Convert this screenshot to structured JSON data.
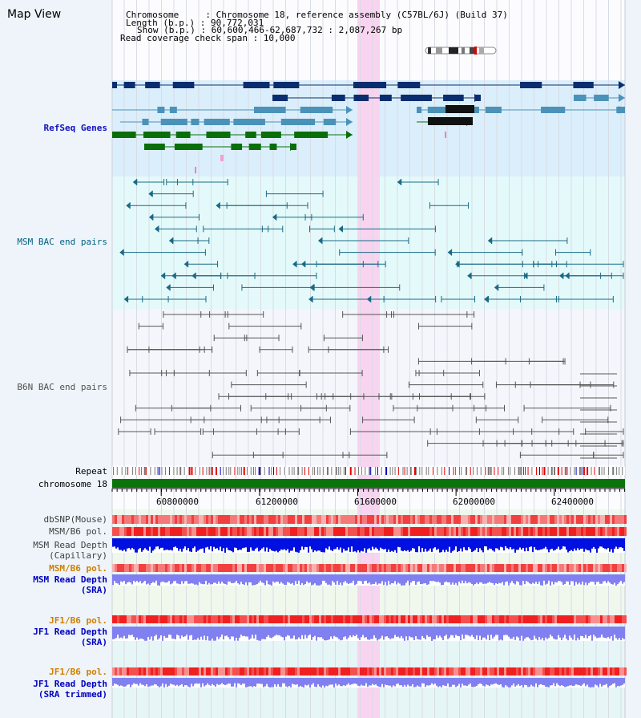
{
  "header": {
    "title": "Map View",
    "lines": [
      "Chromosome     : Chromosome 18, reference assembly (C57BL/6J) (Build 37)",
      "Length (b.p.) : 90,772,031",
      "Show (b.p.) : 60,600,466-62,687,732 : 2,087,267 bp",
      "Read coverage check span : 10,000"
    ]
  },
  "ruler": {
    "ticks": [
      "60800000",
      "61200000",
      "61600000",
      "62000000",
      "62400000"
    ],
    "tick_values": [
      60800000,
      61200000,
      61600000,
      62000000,
      62400000
    ],
    "range": [
      60600466,
      62687732
    ]
  },
  "highlight_range": [
    61600000,
    61690000
  ],
  "tracks": [
    {
      "id": "refseq",
      "label": "RefSeq Genes",
      "color": "#0000a0"
    },
    {
      "id": "msm-bac",
      "label": "MSM BAC end pairs",
      "color": "#006080"
    },
    {
      "id": "b6n-bac",
      "label": "B6N BAC end pairs",
      "color": "#505050"
    },
    {
      "id": "repeat",
      "label": "Repeat",
      "color": "#000000"
    },
    {
      "id": "chromosome",
      "label": "chromosome 18",
      "color": "#000000"
    },
    {
      "id": "dbsnp",
      "label": "dbSNP(Mouse)",
      "color": "#404040"
    },
    {
      "id": "msm-b6-pol",
      "label": "MSM/B6 pol.",
      "color": "#404040"
    },
    {
      "id": "msm-depth-cap",
      "label": "MSM Read Depth\n(Capillary)",
      "color": "#404040"
    },
    {
      "id": "msm-b6-pol-2",
      "label": "MSM/B6 pol.",
      "color": "#d08000"
    },
    {
      "id": "msm-depth-sra",
      "label": "MSM Read Depth\n(SRA)",
      "color": "#0000c0"
    },
    {
      "id": "jf1-b6-pol",
      "label": "JF1/B6 pol.",
      "color": "#d08000"
    },
    {
      "id": "jf1-depth-sra",
      "label": "JF1 Read Depth\n(SRA)",
      "color": "#0000c0"
    },
    {
      "id": "jf1-b6-pol-2",
      "label": "JF1/B6 pol.",
      "color": "#d08000"
    },
    {
      "id": "jf1-depth-trim",
      "label": "JF1 Read Depth\n(SRA trimmed)",
      "color": "#0000c0"
    }
  ],
  "colors": {
    "refseq_bg": "#dbeefb",
    "msm_bg": "#e4fafa",
    "b6n_bg": "#f4f6fc",
    "lower_bg": "#f0f8ee",
    "highlight": "#f8d4f0",
    "gene_dark": "#0a2d6e",
    "gene_mid": "#4a92b8",
    "gene_green": "#0a6e0a",
    "msm_pair": "#1a6a86",
    "b6n_pair": "#555555",
    "chrom_bar": "#0a740a",
    "depth_blue": "#0010e0",
    "depth_light": "#8080f0"
  }
}
